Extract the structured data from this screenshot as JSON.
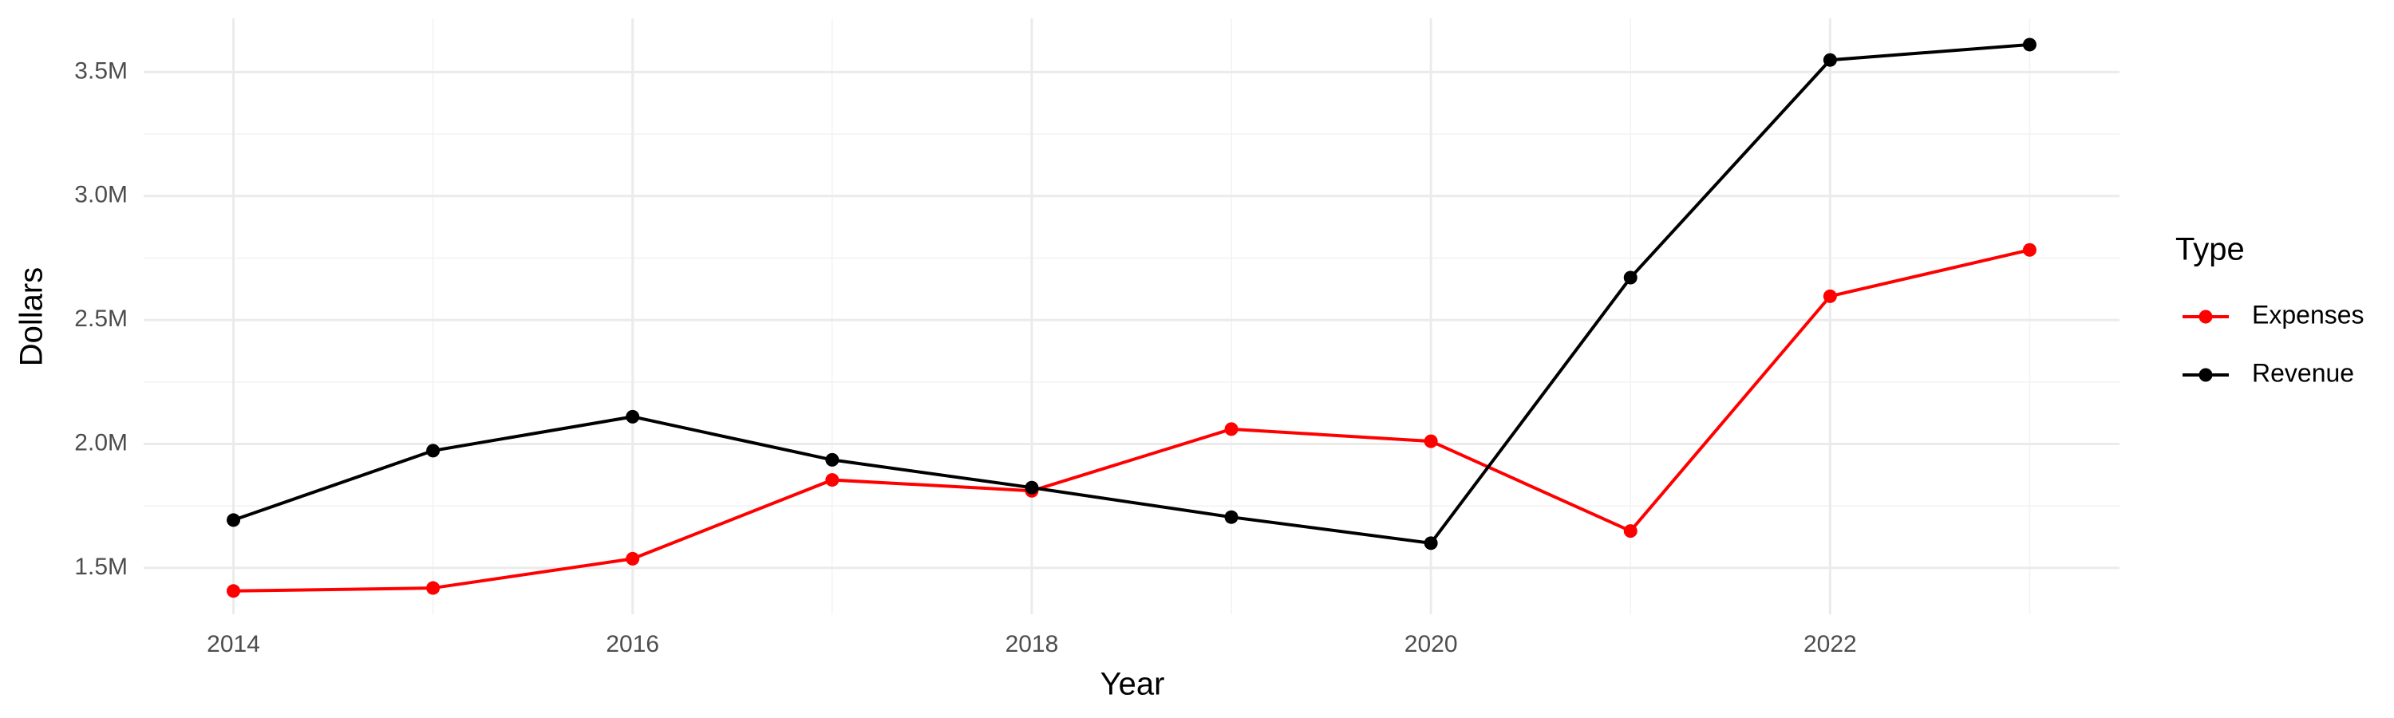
{
  "chart_data": {
    "type": "line",
    "x_label": "Year",
    "y_label": "Dollars",
    "legend_title": "Type",
    "x": [
      2014,
      2015,
      2016,
      2017,
      2018,
      2019,
      2020,
      2021,
      2022,
      2023
    ],
    "series": [
      {
        "name": "Expenses",
        "color": "#ff0000",
        "values": [
          1407000,
          1419000,
          1537000,
          1855000,
          1811000,
          2060000,
          2011000,
          1649000,
          2596000,
          2783000
        ]
      },
      {
        "name": "Revenue",
        "color": "#000000",
        "values": [
          1693000,
          1973000,
          2110000,
          1936000,
          1824000,
          1705000,
          1600000,
          2671000,
          3549000,
          3611000
        ]
      }
    ],
    "xlim": [
      2013.55,
      2023.45
    ],
    "xticks": [
      2014,
      2016,
      2018,
      2020,
      2022
    ],
    "ylim": [
      1313000,
      3717000
    ],
    "yticks": [
      {
        "value": 1500000,
        "label": "1.5M"
      },
      {
        "value": 2000000,
        "label": "2.0M"
      },
      {
        "value": 2500000,
        "label": "2.5M"
      },
      {
        "value": 3000000,
        "label": "3.0M"
      },
      {
        "value": 3500000,
        "label": "3.5M"
      }
    ],
    "grid": true,
    "legend": "right"
  }
}
